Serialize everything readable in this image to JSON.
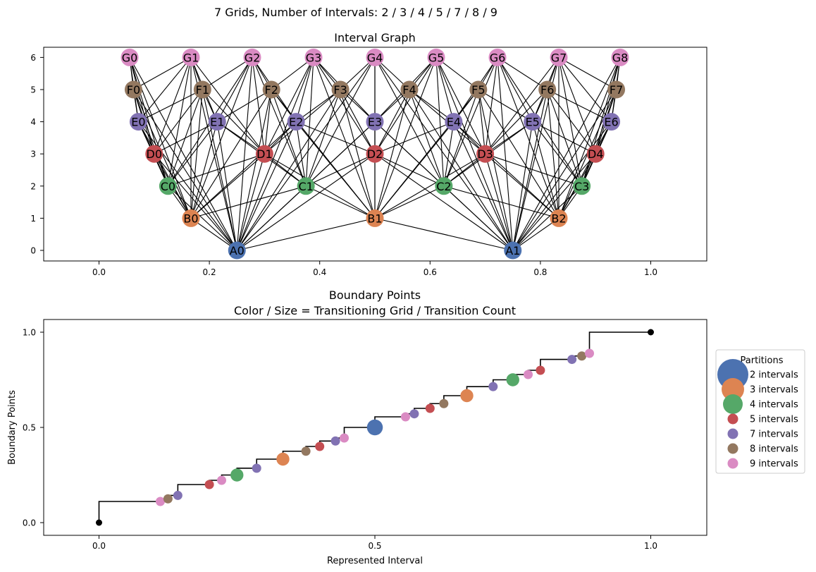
{
  "figure": {
    "suptitle": "7 Grids, Number of Intervals: 2 / 3 / 4 / 5 / 7 / 8 / 9"
  },
  "chart_data": [
    {
      "type": "scatter",
      "subtype": "network-graph",
      "title": "Interval Graph",
      "xlabel": "",
      "ylabel": "",
      "xlim": [
        -0.1,
        1.1
      ],
      "ylim": [
        -0.3,
        6.3
      ],
      "xticks": [
        "0.0",
        "0.2",
        "0.4",
        "0.6",
        "0.8",
        "1.0"
      ],
      "yticks": [
        "0",
        "1",
        "2",
        "3",
        "4",
        "5",
        "6"
      ],
      "level_colors": {
        "A": "#4c72b0",
        "B": "#dd8452",
        "C": "#55a868",
        "D": "#c44e52",
        "E": "#8172b3",
        "F": "#937860",
        "G": "#da8bc3"
      },
      "node_labels": {
        "A": [
          "A0",
          "A1"
        ],
        "B": [
          "B0",
          "B1",
          "B2"
        ],
        "C": [
          "C0",
          "C1",
          "C2",
          "C3"
        ],
        "D": [
          "D0",
          "D1",
          "D2",
          "D3",
          "D4"
        ],
        "E": [
          "E0",
          "E1",
          "E2",
          "E3",
          "E4",
          "E5",
          "E6"
        ],
        "F": [
          "F0",
          "F1",
          "F2",
          "F3",
          "F4",
          "F5",
          "F6",
          "F7"
        ],
        "G": [
          "G0",
          "G1",
          "G2",
          "G3",
          "G4",
          "G5",
          "G6",
          "G7",
          "G8"
        ]
      },
      "levels": [
        "A",
        "B",
        "C",
        "D",
        "E",
        "F",
        "G"
      ],
      "interval_counts": [
        2,
        3,
        4,
        5,
        7,
        8,
        9
      ],
      "edge_color": "#000000"
    },
    {
      "type": "scatter",
      "title": "Boundary Points",
      "subtitle": "Color / Size = Transitioning Grid / Transition Count",
      "xlabel": "Represented Interval",
      "ylabel": "Boundary Points",
      "xlim": [
        -0.1,
        1.1
      ],
      "ylim": [
        -0.06,
        1.06
      ],
      "xticks": [
        "0.0",
        "0.5",
        "1.0"
      ],
      "yticks": [
        "0.0",
        "0.5",
        "1.0"
      ],
      "step_line_color": "#000000",
      "endpoints": [
        [
          0,
          0
        ],
        [
          1,
          1
        ]
      ],
      "legend": {
        "title": "Partitions",
        "placement": "right",
        "entries": [
          {
            "label": "2 intervals",
            "color": "#4c72b0",
            "count": 2
          },
          {
            "label": "3 intervals",
            "color": "#dd8452",
            "count": 3
          },
          {
            "label": "4 intervals",
            "color": "#55a868",
            "count": 4
          },
          {
            "label": "5 intervals",
            "color": "#c44e52",
            "count": 5
          },
          {
            "label": "7 intervals",
            "color": "#8172b3",
            "count": 7
          },
          {
            "label": "8 intervals",
            "color": "#937860",
            "count": 8
          },
          {
            "label": "9 intervals",
            "color": "#da8bc3",
            "count": 9
          }
        ]
      }
    }
  ]
}
